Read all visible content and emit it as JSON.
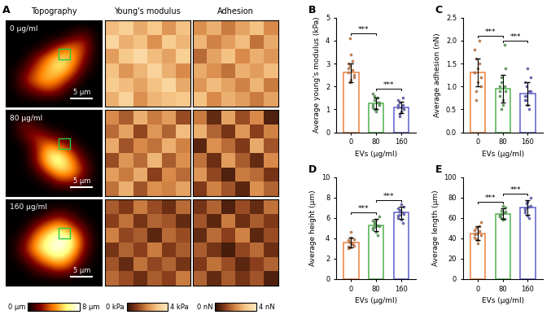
{
  "chart_data": [
    {
      "type": "heatmap_grid",
      "panel_label": "A",
      "column_titles": [
        "Topography",
        "Young's modulus",
        "Adhesion"
      ],
      "row_labels": [
        "0 μg/ml",
        "80 μg/ml",
        "160 μg/ml"
      ],
      "scale_bar": "5 μm",
      "columns": [
        {
          "cells": [
            [
              [
                0,
                0,
                0,
                0,
                0,
                0,
                0,
                0
              ],
              [
                0,
                0,
                0,
                0,
                0,
                1,
                2,
                0
              ],
              [
                0,
                0,
                0,
                1,
                3,
                4,
                3,
                0
              ],
              [
                0,
                0,
                2,
                4,
                6,
                5,
                2,
                0
              ],
              [
                0,
                1,
                3,
                5,
                6,
                4,
                1,
                0
              ],
              [
                0,
                2,
                4,
                5,
                4,
                2,
                0,
                0
              ],
              [
                0,
                1,
                2,
                3,
                2,
                0,
                0,
                0
              ],
              [
                0,
                0,
                0,
                0,
                0,
                0,
                0,
                0
              ]
            ],
            [
              [
                0,
                0,
                0,
                0,
                0,
                0,
                0,
                0
              ],
              [
                0,
                2,
                1,
                0,
                0,
                0,
                0,
                0
              ],
              [
                0,
                1,
                3,
                2,
                1,
                0,
                0,
                0
              ],
              [
                0,
                0,
                2,
                5,
                4,
                2,
                0,
                0
              ],
              [
                0,
                0,
                2,
                6,
                7,
                4,
                1,
                0
              ],
              [
                0,
                0,
                1,
                4,
                6,
                5,
                2,
                0
              ],
              [
                0,
                0,
                0,
                1,
                3,
                3,
                1,
                0
              ],
              [
                0,
                0,
                0,
                0,
                0,
                0,
                0,
                0
              ]
            ],
            [
              [
                0,
                0,
                0,
                0,
                0,
                0,
                0,
                0
              ],
              [
                0,
                0,
                0,
                1,
                2,
                1,
                0,
                0
              ],
              [
                0,
                0,
                2,
                4,
                5,
                3,
                1,
                0
              ],
              [
                0,
                1,
                4,
                6,
                8,
                6,
                2,
                0
              ],
              [
                0,
                2,
                5,
                7,
                8,
                6,
                2,
                0
              ],
              [
                0,
                1,
                3,
                5,
                6,
                4,
                1,
                0
              ],
              [
                0,
                0,
                1,
                2,
                3,
                2,
                0,
                0
              ],
              [
                0,
                0,
                0,
                0,
                0,
                0,
                0,
                0
              ]
            ]
          ],
          "colorbar": {
            "range": [
              0,
              8
            ],
            "ticks": [
              {
                "value": 0,
                "label": "0 μm"
              },
              {
                "value": 8,
                "label": "8 μm"
              }
            ]
          }
        },
        {
          "cells": [
            [
              [
                2.8,
                3.2,
                2.5,
                3.0,
                2.2,
                2.9
              ],
              [
                3.4,
                2.6,
                2.9,
                2.1,
                3.1,
                2.7
              ],
              [
                2.3,
                3.0,
                3.5,
                2.8,
                2.4,
                3.2
              ],
              [
                2.9,
                2.2,
                2.7,
                3.3,
                2.6,
                2.0
              ],
              [
                3.1,
                2.8,
                2.4,
                2.9,
                3.4,
                2.5
              ],
              [
                2.6,
                3.3,
                2.1,
                2.7,
                2.9,
                3.0
              ]
            ],
            [
              [
                2.0,
                1.4,
                2.6,
                1.8,
                2.3,
                1.2
              ],
              [
                1.6,
                2.4,
                1.1,
                2.2,
                1.5,
                2.8
              ],
              [
                2.5,
                1.3,
                2.0,
                1.7,
                2.6,
                1.9
              ],
              [
                1.2,
                2.2,
                1.6,
                2.7,
                1.4,
                2.1
              ],
              [
                2.3,
                1.8,
                2.5,
                1.0,
                2.0,
                1.6
              ],
              [
                1.7,
                2.6,
                1.3,
                2.1,
                1.9,
                2.4
              ]
            ],
            [
              [
                1.4,
                0.9,
                1.8,
                1.2,
                0.7,
                1.6
              ],
              [
                1.0,
                1.7,
                0.8,
                1.5,
                1.3,
                0.6
              ],
              [
                1.9,
                1.1,
                1.4,
                0.5,
                1.6,
                1.2
              ],
              [
                0.8,
                1.5,
                1.0,
                1.8,
                0.9,
                1.4
              ],
              [
                1.3,
                0.6,
                1.7,
                1.1,
                1.5,
                0.8
              ],
              [
                1.6,
                1.2,
                0.7,
                1.4,
                1.0,
                1.8
              ]
            ]
          ],
          "colorbar": {
            "range": [
              0,
              4
            ],
            "ticks": [
              {
                "value": 0,
                "label": "0 kPa"
              },
              {
                "value": 4,
                "label": "4 kPa"
              }
            ]
          }
        },
        {
          "cells": [
            [
              [
                2.1,
                2.6,
                1.8,
                2.4,
                2.9,
                2.0
              ],
              [
                2.7,
                1.9,
                2.3,
                2.8,
                1.7,
                2.5
              ],
              [
                1.6,
                2.4,
                2.9,
                2.0,
                2.6,
                2.2
              ],
              [
                2.5,
                2.1,
                1.7,
                2.6,
                2.3,
                2.8
              ],
              [
                2.2,
                2.8,
                2.4,
                1.9,
                2.7,
                1.8
              ],
              [
                2.9,
                2.0,
                2.6,
                2.3,
                1.8,
                2.4
              ]
            ],
            [
              [
                1.8,
                0.6,
                2.4,
                1.2,
                2.0,
                0.4
              ],
              [
                2.6,
                1.5,
                0.8,
                2.2,
                1.0,
                1.9
              ],
              [
                0.5,
                2.1,
                1.6,
                0.9,
                2.5,
                1.3
              ],
              [
                1.7,
                0.7,
                2.3,
                1.4,
                0.6,
                2.0
              ],
              [
                2.2,
                1.1,
                0.4,
                1.8,
                1.6,
                0.8
              ],
              [
                0.9,
                1.9,
                1.3,
                0.5,
                2.1,
                1.5
              ]
            ],
            [
              [
                0.8,
                1.5,
                0.4,
                1.2,
                0.6,
                1.7
              ],
              [
                1.3,
                0.5,
                1.8,
                0.7,
                1.4,
                0.9
              ],
              [
                0.6,
                1.6,
                1.0,
                1.9,
                0.5,
                1.2
              ],
              [
                1.4,
                0.8,
                0.3,
                1.1,
                1.6,
                0.7
              ],
              [
                0.9,
                1.7,
                1.2,
                0.5,
                1.0,
                1.5
              ],
              [
                1.5,
                0.6,
                1.4,
                0.8,
                1.3,
                0.4
              ]
            ]
          ],
          "colorbar": {
            "range": [
              0,
              4
            ],
            "ticks": [
              {
                "value": 0,
                "label": "0 nN"
              },
              {
                "value": 4,
                "label": "4 nN"
              }
            ]
          }
        }
      ]
    },
    {
      "type": "bar",
      "panel_label": "B",
      "categories": [
        "0",
        "80",
        "160"
      ],
      "x_label": "EVs (μg/ml)",
      "y_label": "Average young's modulus (kPa)",
      "values": [
        2.6,
        1.25,
        1.1
      ],
      "errors": [
        0.4,
        0.25,
        0.25
      ],
      "points": [
        [
          2.6,
          2.9,
          2.3,
          3.1,
          2.5,
          2.8,
          2.2,
          3.4,
          2.7,
          2.4,
          3.0,
          4.1
        ],
        [
          1.2,
          1.4,
          1.0,
          1.5,
          1.3,
          1.1,
          1.6,
          0.9,
          1.3,
          1.2,
          1.7,
          1.0
        ],
        [
          1.1,
          1.3,
          0.9,
          1.2,
          1.0,
          1.4,
          0.8,
          1.1,
          1.5,
          1.0,
          1.2,
          0.7
        ]
      ],
      "colors": [
        "#f08a4b",
        "#5cb85c",
        "#6b6bd6"
      ],
      "ylim": [
        0,
        5
      ],
      "yticks": [
        0,
        1,
        2,
        3,
        4,
        5
      ],
      "significance": [
        {
          "between": [
            0,
            1
          ],
          "label": "***"
        },
        {
          "between": [
            1,
            2
          ],
          "label": "***"
        }
      ]
    },
    {
      "type": "bar",
      "panel_label": "C",
      "categories": [
        "0",
        "80",
        "160"
      ],
      "x_label": "EVs (μg/ml)",
      "y_label": "Average adhesion (nN)",
      "values": [
        1.3,
        0.95,
        0.85
      ],
      "errors": [
        0.3,
        0.3,
        0.25
      ],
      "points": [
        [
          1.3,
          1.6,
          1.1,
          1.5,
          1.2,
          1.8,
          0.9,
          1.4,
          2.0,
          1.0,
          1.3,
          0.7
        ],
        [
          0.9,
          1.2,
          0.7,
          1.0,
          1.4,
          0.8,
          1.1,
          0.6,
          1.9,
          0.9,
          1.0,
          0.5
        ],
        [
          0.8,
          1.0,
          0.6,
          0.9,
          1.2,
          0.7,
          0.8,
          1.4,
          0.5,
          0.9,
          1.1,
          0.7
        ]
      ],
      "colors": [
        "#f08a4b",
        "#5cb85c",
        "#6b6bd6"
      ],
      "ylim": [
        0,
        2.5
      ],
      "yticks": [
        {
          "value": 0,
          "label": "0.0"
        },
        0.5,
        {
          "value": 1,
          "label": "1.0"
        },
        1.5,
        {
          "value": 2,
          "label": "2.0"
        },
        2.5
      ],
      "significance": [
        {
          "between": [
            0,
            1
          ],
          "label": "***"
        },
        {
          "between": [
            1,
            2
          ],
          "label": "***"
        }
      ]
    },
    {
      "type": "bar",
      "panel_label": "D",
      "categories": [
        "0",
        "80",
        "160"
      ],
      "x_label": "EVs (μg/ml)",
      "y_label": "Average height (μm)",
      "values": [
        3.6,
        5.3,
        6.5
      ],
      "errors": [
        0.5,
        0.6,
        0.6
      ],
      "points": [
        [
          3.2,
          3.6,
          4.1,
          3.4,
          3.9,
          3.0,
          3.7,
          4.6,
          3.5,
          3.3,
          3.8,
          3.1
        ],
        [
          5.0,
          5.6,
          4.6,
          5.3,
          6.1,
          4.9,
          5.4,
          5.8,
          4.3,
          5.2,
          5.7,
          5.1
        ],
        [
          6.2,
          6.8,
          5.8,
          6.5,
          7.1,
          6.0,
          6.6,
          7.3,
          5.5,
          6.4,
          6.9,
          6.3
        ]
      ],
      "colors": [
        "#f08a4b",
        "#5cb85c",
        "#6b6bd6"
      ],
      "ylim": [
        0,
        10
      ],
      "yticks": [
        0,
        2,
        4,
        6,
        8,
        10
      ],
      "significance": [
        {
          "between": [
            0,
            1
          ],
          "label": "***"
        },
        {
          "between": [
            1,
            2
          ],
          "label": "***"
        }
      ]
    },
    {
      "type": "bar",
      "panel_label": "E",
      "categories": [
        "0",
        "80",
        "160"
      ],
      "x_label": "EVs (μg/ml)",
      "y_label": "Average length (μm)",
      "values": [
        45,
        64,
        70
      ],
      "errors": [
        7,
        5,
        7
      ],
      "points": [
        [
          44,
          50,
          38,
          47,
          56,
          41,
          45,
          35,
          52,
          43,
          48,
          39
        ],
        [
          62,
          67,
          58,
          65,
          70,
          61,
          64,
          72,
          59,
          66,
          63,
          60
        ],
        [
          68,
          74,
          62,
          71,
          80,
          65,
          70,
          76,
          60,
          72,
          69,
          75
        ]
      ],
      "colors": [
        "#f08a4b",
        "#5cb85c",
        "#6b6bd6"
      ],
      "ylim": [
        0,
        100
      ],
      "yticks": [
        0,
        20,
        40,
        60,
        80,
        100
      ],
      "significance": [
        {
          "between": [
            0,
            1
          ],
          "label": "***"
        },
        {
          "between": [
            1,
            2
          ],
          "label": "***"
        }
      ]
    }
  ]
}
